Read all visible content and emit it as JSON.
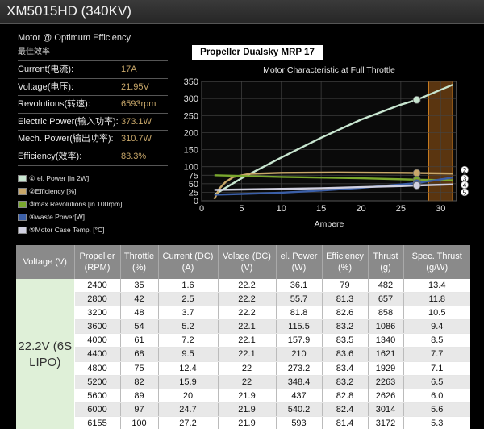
{
  "title": "XM5015HD (340KV)",
  "specs": {
    "heading": "Motor @ Optimum Efficiency",
    "subheading": "最佳效率",
    "rows": [
      {
        "label": "Current(电流):",
        "value": "17A"
      },
      {
        "label": "Voltage(电压):",
        "value": "21.95V"
      },
      {
        "label": "Revolutions(转速):",
        "value": "6593rpm"
      },
      {
        "label": "Electric Power(输入功率):",
        "value": "373.1W"
      },
      {
        "label": "Mech. Power(输出功率):",
        "value": "310.7W"
      },
      {
        "label": "Efficiency(效率):",
        "value": "83.3%"
      }
    ]
  },
  "legend": [
    {
      "label": "① el. Power [in 2W]",
      "color": "#c8e6d0"
    },
    {
      "label": "②Efficiency [%]",
      "color": "#c9a86a"
    },
    {
      "label": "③max.Revolutions [in 100rpm]",
      "color": "#7aa82e"
    },
    {
      "label": "④waste Power[W]",
      "color": "#3b5fa8"
    },
    {
      "label": "⑤Motor Case Temp. [°C]",
      "color": "#d0d0e0"
    }
  ],
  "propeller_title": "Propeller Dualsky MRP 17",
  "chart_data": {
    "type": "line",
    "title": "Motor Characteristic at Full Throttle",
    "xlabel": "Ampere",
    "ylabel": "",
    "xlim": [
      0,
      32
    ],
    "ylim": [
      0,
      350
    ],
    "x_ticks": [
      0,
      5,
      10,
      15,
      20,
      25,
      30
    ],
    "y_ticks": [
      0,
      25,
      50,
      75,
      100,
      150,
      200,
      250,
      300,
      350
    ],
    "grid": true,
    "right_markers": [
      "2",
      "3",
      "4",
      "5"
    ],
    "highlight_region_x": [
      28.5,
      31.5
    ],
    "series": [
      {
        "name": "el. Power [in 2W]",
        "color": "#c8e6d0",
        "x": [
          1.6,
          5,
          10,
          15,
          20,
          25,
          27,
          31.5
        ],
        "y": [
          18,
          66,
          127,
          185,
          238,
          282,
          296,
          340
        ],
        "marker_at": 27
      },
      {
        "name": "Efficiency [%]",
        "color": "#c9a86a",
        "x": [
          1.6,
          2.2,
          3,
          4,
          6,
          10,
          17,
          25,
          27,
          31.5
        ],
        "y": [
          5,
          35,
          55,
          70,
          79,
          82,
          83.3,
          82,
          81.4,
          80
        ],
        "marker_at": 27
      },
      {
        "name": "max.Revolutions [in 100rpm]",
        "color": "#7aa82e",
        "x": [
          1.6,
          10,
          20,
          27,
          31.5
        ],
        "y": [
          75,
          70,
          66,
          62,
          60
        ],
        "marker_at": 27
      },
      {
        "name": "waste Power[W]",
        "color": "#3b5fa8",
        "x": [
          1.6,
          5,
          10,
          15,
          20,
          25,
          27,
          31.5
        ],
        "y": [
          18,
          20,
          24,
          30,
          38,
          48,
          52,
          68
        ],
        "marker_at": 27
      },
      {
        "name": "Motor Case Temp. [°C]",
        "color": "#d0d0e0",
        "x": [
          1.6,
          5,
          10,
          15,
          20,
          25,
          27,
          31.5
        ],
        "y": [
          32,
          33,
          35,
          37,
          40,
          43,
          45,
          48
        ],
        "marker_at": 27
      }
    ]
  },
  "table": {
    "headers": [
      "Voltage (V)",
      "Propeller (RPM)",
      "Throttle (%)",
      "Current (DC) (A)",
      "Volage (DC) (V)",
      "el. Power (W)",
      "Efficiency (%)",
      "Thrust (g)",
      "Spec. Thrust (g/W)"
    ],
    "voltage_cell": "22.2V (6S LIPO)",
    "rows": [
      [
        "2400",
        "35",
        "1.6",
        "22.2",
        "36.1",
        "79",
        "482",
        "13.4"
      ],
      [
        "2800",
        "42",
        "2.5",
        "22.2",
        "55.7",
        "81.3",
        "657",
        "11.8"
      ],
      [
        "3200",
        "48",
        "3.7",
        "22.2",
        "81.8",
        "82.6",
        "858",
        "10.5"
      ],
      [
        "3600",
        "54",
        "5.2",
        "22.1",
        "115.5",
        "83.2",
        "1086",
        "9.4"
      ],
      [
        "4000",
        "61",
        "7.2",
        "22.1",
        "157.9",
        "83.5",
        "1340",
        "8.5"
      ],
      [
        "4400",
        "68",
        "9.5",
        "22.1",
        "210",
        "83.6",
        "1621",
        "7.7"
      ],
      [
        "4800",
        "75",
        "12.4",
        "22",
        "273.2",
        "83.4",
        "1929",
        "7.1"
      ],
      [
        "5200",
        "82",
        "15.9",
        "22",
        "348.4",
        "83.2",
        "2263",
        "6.5"
      ],
      [
        "5600",
        "89",
        "20",
        "21.9",
        "437",
        "82.8",
        "2626",
        "6.0"
      ],
      [
        "6000",
        "97",
        "24.7",
        "21.9",
        "540.2",
        "82.4",
        "3014",
        "5.6"
      ],
      [
        "6155",
        "100",
        "27.2",
        "21.9",
        "593",
        "81.4",
        "3172",
        "5.3"
      ]
    ]
  }
}
